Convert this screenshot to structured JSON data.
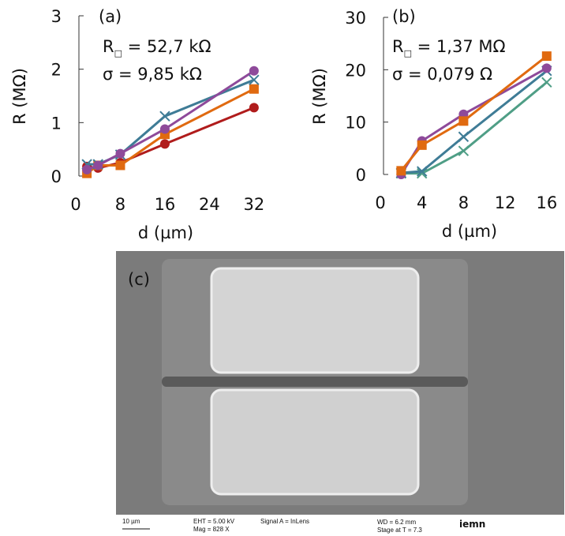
{
  "chart_data": [
    {
      "type": "line",
      "annotations": [
        "(a)",
        [
          "R",
          "□",
          " = 52,7 kΩ"
        ],
        "σ = 9,85 kΩ"
      ],
      "x_label": "d (µm)",
      "y_label": "R (MΩ)",
      "x": [
        2,
        4,
        8,
        16,
        32
      ],
      "xlim": [
        0,
        34
      ],
      "xticks": [
        0,
        8,
        16,
        24,
        32
      ],
      "ylim": [
        0,
        3
      ],
      "yticks": [
        0,
        1,
        2,
        3
      ],
      "series": [
        {
          "color": "#b01c1c",
          "marker": "circle",
          "values": [
            0.18,
            0.15,
            0.25,
            0.6,
            1.28
          ]
        },
        {
          "color": "#e06a10",
          "marker": "square",
          "values": [
            0.05,
            0.2,
            0.2,
            0.78,
            1.63
          ]
        },
        {
          "color": "#3f7c96",
          "marker": "cross",
          "values": [
            0.22,
            0.22,
            0.4,
            1.12,
            1.8
          ]
        },
        {
          "color": "#8e4a9a",
          "marker": "circle",
          "values": [
            0.12,
            0.2,
            0.42,
            0.88,
            1.97
          ]
        }
      ]
    },
    {
      "type": "line",
      "annotations": [
        "(b)",
        [
          "R",
          "□",
          " = 1,37 MΩ"
        ],
        "σ = 0,079 Ω"
      ],
      "x_label": "d (µm)",
      "y_label": "R (MΩ)",
      "x": [
        2,
        4,
        8,
        16
      ],
      "xlim": [
        0,
        17
      ],
      "xticks": [
        0,
        4,
        8,
        12,
        16
      ],
      "ylim": [
        0,
        30
      ],
      "yticks": [
        0,
        10,
        20,
        30
      ],
      "series": [
        {
          "color": "#4f9e86",
          "marker": "cross",
          "values": [
            0.2,
            0.2,
            4.5,
            17.6
          ]
        },
        {
          "color": "#3f7c96",
          "marker": "cross",
          "values": [
            0.3,
            0.6,
            7.2,
            19.8
          ]
        },
        {
          "color": "#8e4a9a",
          "marker": "circle",
          "values": [
            0,
            6.4,
            11.5,
            20.3
          ]
        },
        {
          "color": "#e06a10",
          "marker": "square",
          "values": [
            0.7,
            5.6,
            10.2,
            22.6
          ]
        }
      ]
    }
  ],
  "panel_c": {
    "label": "(c)",
    "scale_bar": "10 µm",
    "eht": "EHT = 5.00 kV",
    "mag": "Mag =  828 X",
    "signal": "Signal A = InLens",
    "wd": "WD =  6.2 mm",
    "stage": "Stage at T =  7.3",
    "logo": "iemn"
  }
}
